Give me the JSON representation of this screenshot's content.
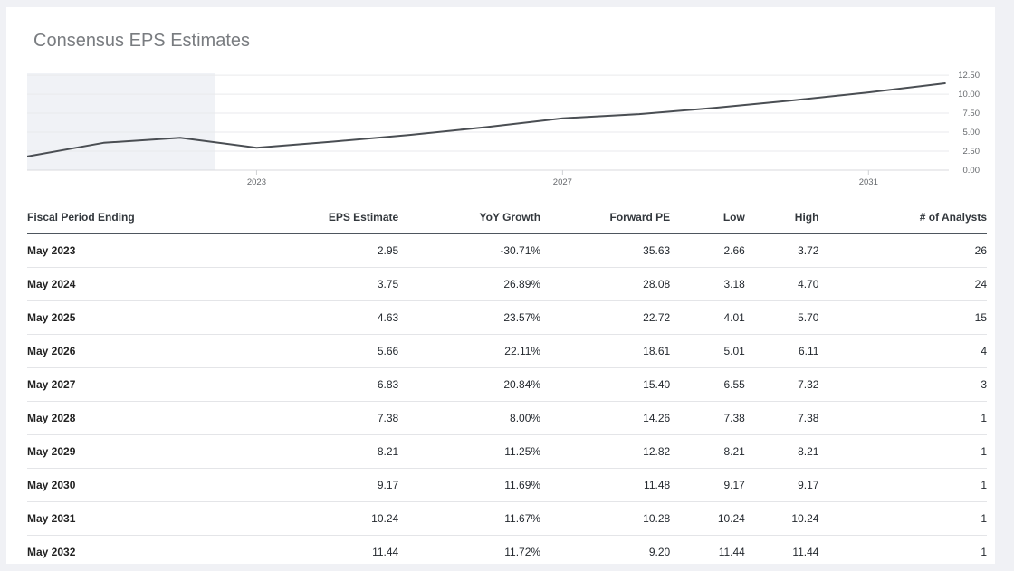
{
  "page": {
    "background_color": "#f0f1f5",
    "card_background": "#ffffff"
  },
  "header": {
    "title": "Consensus EPS Estimates",
    "title_color": "#797c80"
  },
  "chart_data": {
    "type": "line",
    "title": "Consensus EPS Estimates",
    "legend": false,
    "grid": true,
    "line_color": "#4a4e53",
    "x_axis": {
      "range": [
        2020,
        2032.05
      ],
      "ticks": [
        2023,
        2027,
        2031
      ],
      "tick_labels": [
        "2023",
        "2027",
        "2031"
      ]
    },
    "y_axis": {
      "position": "right",
      "range": [
        0,
        12.75
      ],
      "ticks": [
        12.5,
        10,
        7.5,
        5,
        2.5,
        0
      ],
      "tick_labels": [
        "12.50",
        "10.00",
        "7.50",
        "5.00",
        "2.50",
        "0.00"
      ]
    },
    "shaded_region": {
      "meaning": "historical-period",
      "x_start": 2020,
      "x_end": 2022.45,
      "color": "#f0f2f6"
    },
    "series": [
      {
        "name": "Consensus EPS",
        "color": "#4a4e53",
        "x": [
          2020,
          2021,
          2022,
          2023,
          2024,
          2025,
          2026,
          2027,
          2028,
          2029,
          2030,
          2031,
          2032
        ],
        "values": [
          1.8,
          3.6,
          4.26,
          2.95,
          3.75,
          4.63,
          5.66,
          6.83,
          7.38,
          8.21,
          9.17,
          10.24,
          11.44
        ]
      }
    ]
  },
  "table": {
    "columns": [
      {
        "label": "Fiscal Period Ending",
        "align": "left"
      },
      {
        "label": "EPS Estimate",
        "align": "right"
      },
      {
        "label": "YoY Growth",
        "align": "right"
      },
      {
        "label": "Forward PE",
        "align": "right"
      },
      {
        "label": "Low",
        "align": "right"
      },
      {
        "label": "High",
        "align": "right"
      },
      {
        "label": "# of Analysts",
        "align": "right"
      }
    ],
    "rows": [
      [
        "May 2023",
        "2.95",
        "-30.71%",
        "35.63",
        "2.66",
        "3.72",
        "26"
      ],
      [
        "May 2024",
        "3.75",
        "26.89%",
        "28.08",
        "3.18",
        "4.70",
        "24"
      ],
      [
        "May 2025",
        "4.63",
        "23.57%",
        "22.72",
        "4.01",
        "5.70",
        "15"
      ],
      [
        "May 2026",
        "5.66",
        "22.11%",
        "18.61",
        "5.01",
        "6.11",
        "4"
      ],
      [
        "May 2027",
        "6.83",
        "20.84%",
        "15.40",
        "6.55",
        "7.32",
        "3"
      ],
      [
        "May 2028",
        "7.38",
        "8.00%",
        "14.26",
        "7.38",
        "7.38",
        "1"
      ],
      [
        "May 2029",
        "8.21",
        "11.25%",
        "12.82",
        "8.21",
        "8.21",
        "1"
      ],
      [
        "May 2030",
        "9.17",
        "11.69%",
        "11.48",
        "9.17",
        "9.17",
        "1"
      ],
      [
        "May 2031",
        "10.24",
        "11.67%",
        "10.28",
        "10.24",
        "10.24",
        "1"
      ],
      [
        "May 2032",
        "11.44",
        "11.72%",
        "9.20",
        "11.44",
        "11.44",
        "1"
      ]
    ]
  }
}
